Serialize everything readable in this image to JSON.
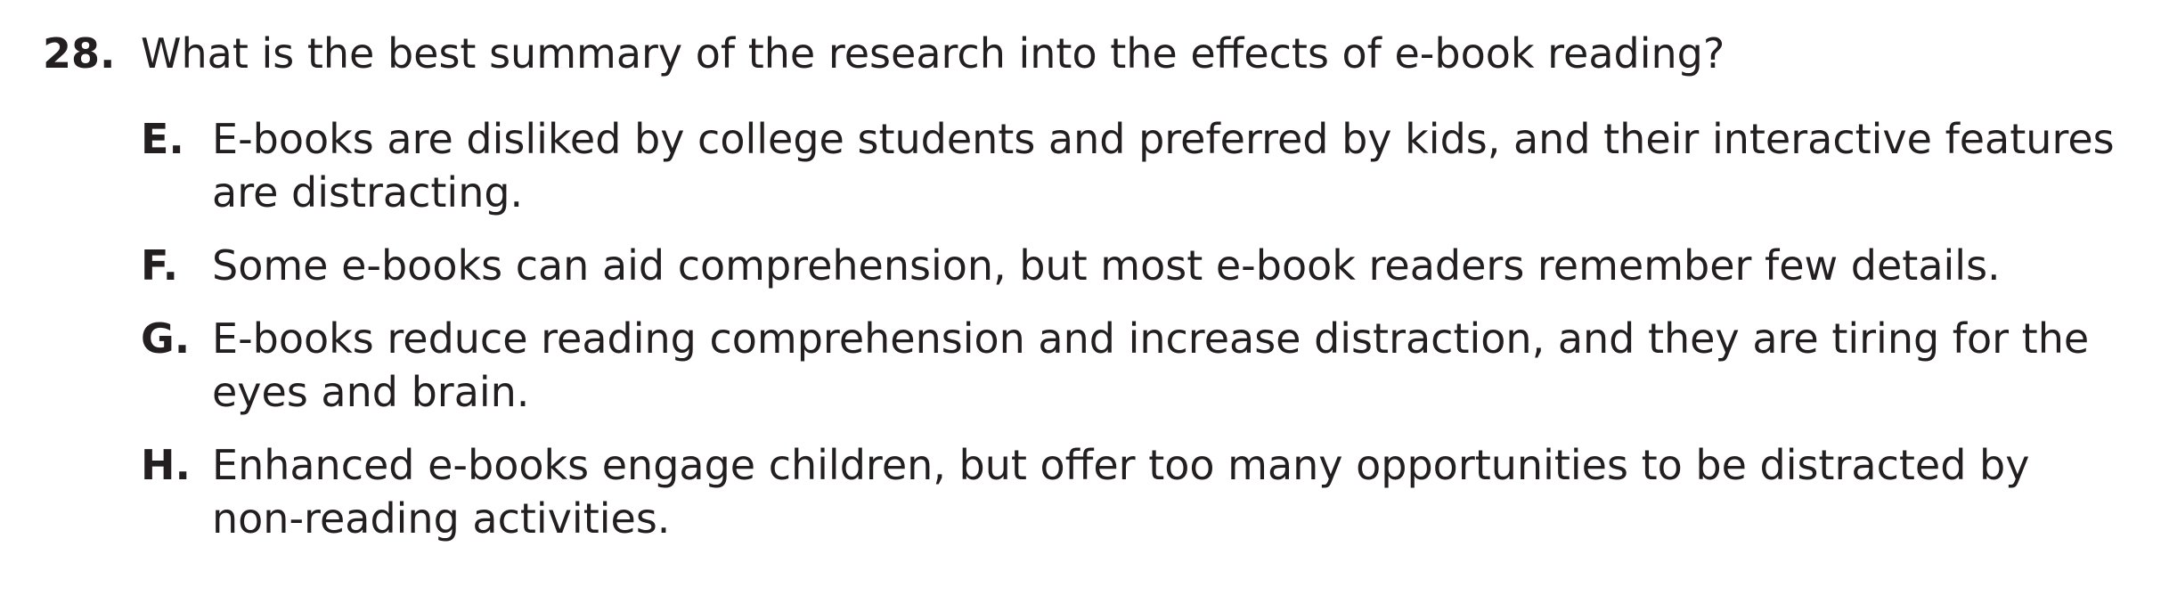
{
  "question": {
    "number": "28.",
    "text": "What is the best summary of the research into the effects of e-book reading?"
  },
  "choices": [
    {
      "letter": "E.",
      "text": "E-books are disliked by college students and preferred by kids, and their interactive features are distracting."
    },
    {
      "letter": "F.",
      "text": "Some e-books can aid comprehension, but most e-book readers remember few details."
    },
    {
      "letter": "G.",
      "text": "E-books reduce reading comprehension and increase distraction, and they are tiring for the eyes and brain."
    },
    {
      "letter": "H.",
      "text": "Enhanced e-books engage children, but offer too many opportunities to be distracted by non-reading activities."
    }
  ]
}
